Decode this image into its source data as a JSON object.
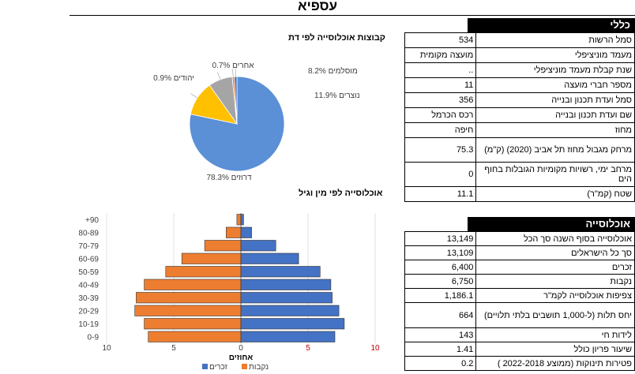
{
  "page": {
    "title": "עספיא"
  },
  "general": {
    "header": "כללי",
    "rows": [
      {
        "label": "סמל הרשות",
        "value": "534"
      },
      {
        "label": "מעמד מוניציפלי",
        "value": "מועצה מקומית"
      },
      {
        "label": "שנת קבלת מעמד מוניציפלי",
        "value": ".."
      },
      {
        "label": "מספר חברי מועצה",
        "value": "11"
      },
      {
        "label": "סמל ועדת תכנון ובנייה",
        "value": "356"
      },
      {
        "label": "שם ועדת תכנון ובנייה",
        "value": "רכס הכרמל"
      },
      {
        "label": "מחוז",
        "value": "חיפה"
      },
      {
        "label": "מרחק מגבול מחוז תל אביב  (2020) (ק\"מ)",
        "value": "75.3"
      },
      {
        "label": "מרחב ימי, רשויות מקומיות הגובלות בחוף הים",
        "value": "0"
      },
      {
        "label": "שטח (קמ\"ר)",
        "value": "11.1"
      }
    ]
  },
  "population": {
    "header": "אוכלוסייה",
    "rows": [
      {
        "label": "אוכלוסייה בסוף השנה סך הכל",
        "value": "13,149"
      },
      {
        "label": "סך כל הישראלים",
        "value": "13,109"
      },
      {
        "label": "זכרים",
        "value": "6,400"
      },
      {
        "label": "נקבות",
        "value": "6,750"
      },
      {
        "label": "צפיפות אוכלוסייה לקמ\"ר",
        "value": "1,186.1"
      },
      {
        "label": "יחס תלות (ל-1,000 תושבים בלתי תלויים)",
        "value": "664"
      },
      {
        "label": "לידות חי",
        "value": "143"
      },
      {
        "label": "שיעור פריון כולל",
        "value": "1.41"
      },
      {
        "label": "פטירות תינוקות (ממוצע 2022-2018 )",
        "value": "0.2"
      }
    ]
  },
  "chart_data": [
    {
      "type": "pie",
      "title": "קבוצות אוכלוסייה לפי דת",
      "slices": [
        {
          "name": "דרוזים",
          "value": 78.3,
          "color": "#5b8fd6"
        },
        {
          "name": "נוצרים",
          "value": 11.9,
          "color": "#ffc000"
        },
        {
          "name": "מוסלמים",
          "value": 8.2,
          "color": "#a5a5a5"
        },
        {
          "name": "אחרים",
          "value": 0.7,
          "color": "#ed7d31"
        },
        {
          "name": "יהודים",
          "value": 0.9,
          "color": "#4472c4"
        }
      ]
    },
    {
      "type": "bar",
      "orientation": "horizontal-pyramid",
      "title": "אוכלוסייה לפי מין וגיל",
      "categories": [
        "0-9",
        "10-19",
        "20-29",
        "30-39",
        "40-49",
        "50-59",
        "60-69",
        "70-79",
        "80-89",
        "+90"
      ],
      "series": [
        {
          "name": "זכרים",
          "color": "#4472c4",
          "values": [
            7.0,
            7.7,
            7.3,
            6.8,
            6.7,
            5.9,
            4.3,
            2.6,
            0.8,
            0.2
          ]
        },
        {
          "name": "נקבות",
          "color": "#ed7d31",
          "values": [
            6.9,
            7.2,
            7.9,
            7.8,
            7.2,
            5.6,
            4.4,
            2.7,
            1.1,
            0.3
          ]
        }
      ],
      "xticks": [
        "10",
        "5",
        "0",
        "5",
        "10"
      ],
      "xlim": [
        -10,
        10
      ],
      "xlabel": "אחוזים",
      "legend": [
        "זכרים",
        "נקבות"
      ]
    }
  ]
}
